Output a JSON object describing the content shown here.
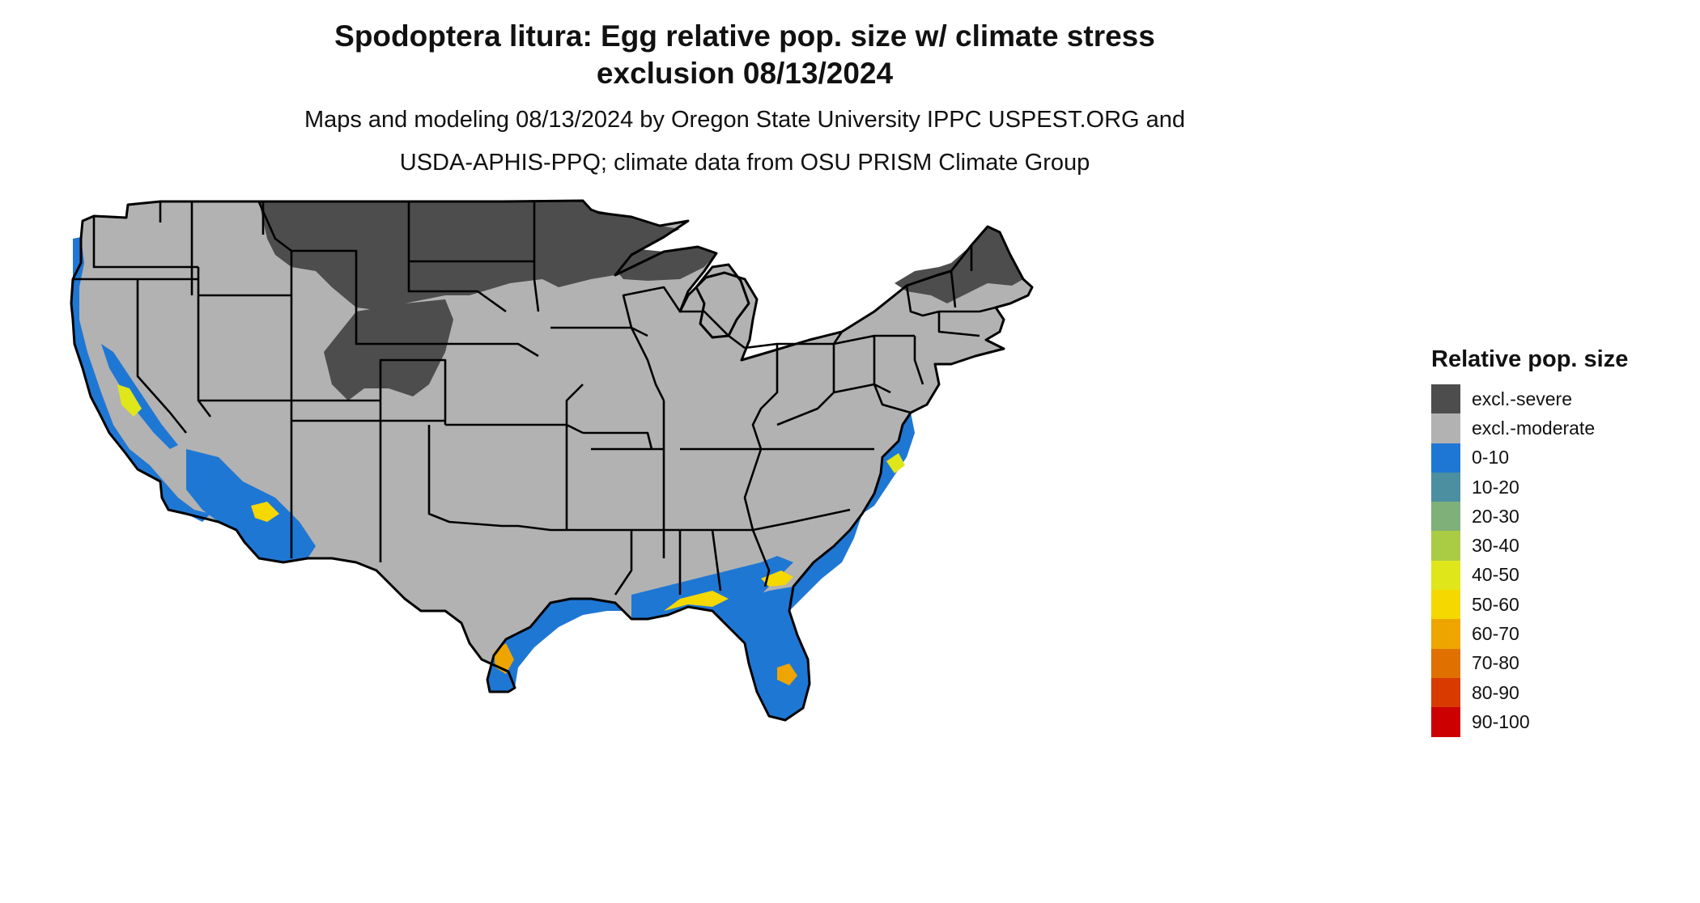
{
  "title_line1": "Spodoptera litura: Egg relative pop. size w/ climate stress",
  "title_line2": "exclusion 08/13/2024",
  "subtitle_line1": "Maps and modeling 08/13/2024 by Oregon State University IPPC USPEST.ORG and",
  "subtitle_line2": "USDA-APHIS-PPQ; climate data from OSU PRISM Climate Group",
  "legend": {
    "title": "Relative pop. size",
    "items": [
      {
        "label": "excl.-severe",
        "color": "#4d4d4d"
      },
      {
        "label": "excl.-moderate",
        "color": "#b2b2b2"
      },
      {
        "label": "0-10",
        "color": "#1f77d4"
      },
      {
        "label": "10-20",
        "color": "#4b8fa0"
      },
      {
        "label": "20-30",
        "color": "#7fb07a"
      },
      {
        "label": "30-40",
        "color": "#aacc44"
      },
      {
        "label": "40-50",
        "color": "#dfe61a"
      },
      {
        "label": "50-60",
        "color": "#f5d800"
      },
      {
        "label": "60-70",
        "color": "#eea500"
      },
      {
        "label": "70-80",
        "color": "#e07000"
      },
      {
        "label": "80-90",
        "color": "#d93a00"
      },
      {
        "label": "90-100",
        "color": "#cc0000"
      }
    ]
  },
  "map": {
    "region": "Contiguous United States",
    "colors": {
      "excl_severe": "#4d4d4d",
      "excl_moderate": "#b2b2b2",
      "low": "#1f77d4",
      "mid": "#f5d800",
      "high": "#eea500",
      "border": "#000000"
    }
  }
}
